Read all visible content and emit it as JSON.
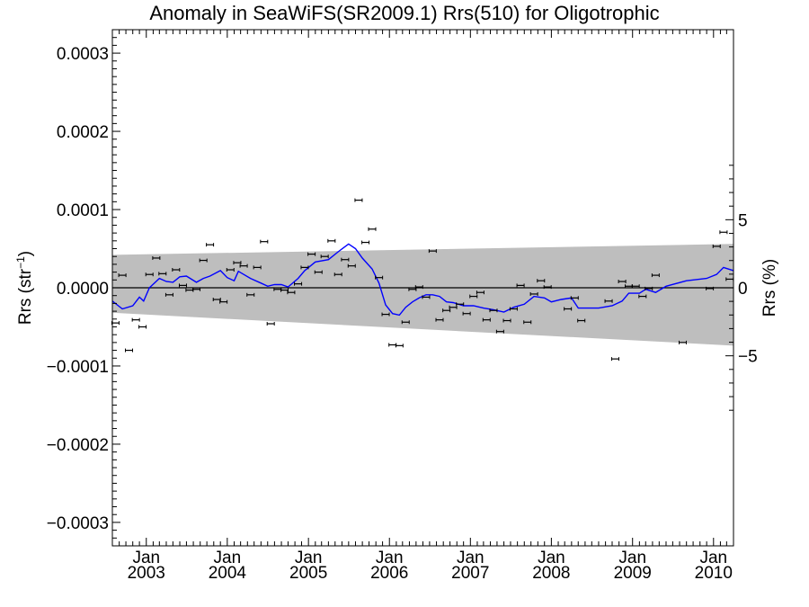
{
  "chart_data": {
    "type": "line",
    "title": "Anomaly in SeaWiFS(SR2009.1) Rrs(510) for Oligotrophic",
    "ylabel": "Rrs (str",
    "ylabel_superscript": "−1",
    "ylabel_close": ")",
    "y2label": "Rrs (%)",
    "xlim": [
      "2002-08-01",
      "2010-04-01"
    ],
    "ylim": [
      -0.00033,
      0.00033
    ],
    "y2_ticks": [
      {
        "value": 8.7e-05,
        "label": "5"
      },
      {
        "value": 0.0,
        "label": "0"
      },
      {
        "value": -8.7e-05,
        "label": "−5"
      }
    ],
    "y_ticks": [
      {
        "value": 0.0003,
        "label": "0.0003"
      },
      {
        "value": 0.0002,
        "label": "0.0002"
      },
      {
        "value": 0.0001,
        "label": "0.0001"
      },
      {
        "value": 0.0,
        "label": "0.0000"
      },
      {
        "value": -0.0001,
        "label": "−0.0001"
      },
      {
        "value": -0.0002,
        "label": "−0.0002"
      },
      {
        "value": -0.0003,
        "label": "−0.0003"
      }
    ],
    "x_ticks": [
      {
        "date": "2003-01-01",
        "month": "Jan",
        "year": "2003"
      },
      {
        "date": "2004-01-01",
        "month": "Jan",
        "year": "2004"
      },
      {
        "date": "2005-01-01",
        "month": "Jan",
        "year": "2005"
      },
      {
        "date": "2006-01-01",
        "month": "Jan",
        "year": "2006"
      },
      {
        "date": "2007-01-01",
        "month": "Jan",
        "year": "2007"
      },
      {
        "date": "2008-01-01",
        "month": "Jan",
        "year": "2008"
      },
      {
        "date": "2009-01-01",
        "month": "Jan",
        "year": "2009"
      },
      {
        "date": "2010-01-01",
        "month": "Jan",
        "year": "2010"
      }
    ],
    "uncertainty_band": {
      "color": "#bebebe",
      "x": [
        "2002-08-01",
        "2010-04-01"
      ],
      "upper": [
        4.2e-05,
        5.6e-05
      ],
      "lower": [
        -3.2e-05,
        -7.4e-05
      ]
    },
    "zero_line": true,
    "grid": false,
    "series": [
      {
        "kind": "points_with_errorbars",
        "color": "#000000",
        "points": [
          {
            "x": "2002-08-15",
            "y": -4.5e-05
          },
          {
            "x": "2002-09-15",
            "y": 1.6e-05
          },
          {
            "x": "2002-10-15",
            "y": -8e-05
          },
          {
            "x": "2002-11-15",
            "y": -4.1e-05
          },
          {
            "x": "2002-12-15",
            "y": -5e-05
          },
          {
            "x": "2003-01-15",
            "y": 1.7e-05
          },
          {
            "x": "2003-02-15",
            "y": 3.8e-05
          },
          {
            "x": "2003-03-15",
            "y": 1.8e-05
          },
          {
            "x": "2003-04-15",
            "y": -9e-06
          },
          {
            "x": "2003-05-15",
            "y": 2.3e-05
          },
          {
            "x": "2003-06-15",
            "y": 3e-06
          },
          {
            "x": "2003-07-15",
            "y": -3e-06
          },
          {
            "x": "2003-08-15",
            "y": -2e-06
          },
          {
            "x": "2003-09-15",
            "y": 3.5e-05
          },
          {
            "x": "2003-10-15",
            "y": 5.5e-05
          },
          {
            "x": "2003-11-15",
            "y": -1.5e-05
          },
          {
            "x": "2003-12-15",
            "y": -1.8e-05
          },
          {
            "x": "2004-01-15",
            "y": 2.3e-05
          },
          {
            "x": "2004-02-15",
            "y": 3.2e-05
          },
          {
            "x": "2004-03-15",
            "y": 2.8e-05
          },
          {
            "x": "2004-04-15",
            "y": -9e-06
          },
          {
            "x": "2004-05-15",
            "y": 2.6e-05
          },
          {
            "x": "2004-06-15",
            "y": 5.9e-05
          },
          {
            "x": "2004-07-15",
            "y": -4.6e-05
          },
          {
            "x": "2004-08-15",
            "y": -2e-06
          },
          {
            "x": "2004-09-15",
            "y": -3e-06
          },
          {
            "x": "2004-10-15",
            "y": -6e-06
          },
          {
            "x": "2004-11-15",
            "y": 5e-06
          },
          {
            "x": "2004-12-15",
            "y": 2.6e-05
          },
          {
            "x": "2005-01-15",
            "y": 4.3e-05
          },
          {
            "x": "2005-02-15",
            "y": 2e-05
          },
          {
            "x": "2005-03-15",
            "y": 4e-05
          },
          {
            "x": "2005-04-15",
            "y": 6e-05
          },
          {
            "x": "2005-05-15",
            "y": 1.7e-05
          },
          {
            "x": "2005-06-15",
            "y": 3.6e-05
          },
          {
            "x": "2005-07-15",
            "y": 2.8e-05
          },
          {
            "x": "2005-08-15",
            "y": 0.000112
          },
          {
            "x": "2005-09-15",
            "y": 5.8e-05
          },
          {
            "x": "2005-10-15",
            "y": 7.5e-05
          },
          {
            "x": "2005-11-15",
            "y": 1.3e-05
          },
          {
            "x": "2005-12-15",
            "y": -3.4e-05
          },
          {
            "x": "2006-01-15",
            "y": -7.3e-05
          },
          {
            "x": "2006-02-15",
            "y": -7.4e-05
          },
          {
            "x": "2006-03-15",
            "y": -4.4e-05
          },
          {
            "x": "2006-04-15",
            "y": -2e-06
          },
          {
            "x": "2006-05-15",
            "y": 1e-06
          },
          {
            "x": "2006-06-15",
            "y": -1.2e-05
          },
          {
            "x": "2006-07-15",
            "y": 4.7e-05
          },
          {
            "x": "2006-08-15",
            "y": -4.1e-05
          },
          {
            "x": "2006-09-15",
            "y": -2.9e-05
          },
          {
            "x": "2006-10-15",
            "y": -2.5e-05
          },
          {
            "x": "2006-11-15",
            "y": -2.1e-05
          },
          {
            "x": "2006-12-15",
            "y": -3.3e-05
          },
          {
            "x": "2007-01-15",
            "y": -1.1e-05
          },
          {
            "x": "2007-02-15",
            "y": -6e-06
          },
          {
            "x": "2007-03-15",
            "y": -4.1e-05
          },
          {
            "x": "2007-04-15",
            "y": -2.9e-05
          },
          {
            "x": "2007-05-15",
            "y": -5.6e-05
          },
          {
            "x": "2007-06-15",
            "y": -4.2e-05
          },
          {
            "x": "2007-07-15",
            "y": -2.7e-05
          },
          {
            "x": "2007-08-15",
            "y": 3e-06
          },
          {
            "x": "2007-09-15",
            "y": -4.4e-05
          },
          {
            "x": "2007-10-15",
            "y": -8e-06
          },
          {
            "x": "2007-11-15",
            "y": 9e-06
          },
          {
            "x": "2007-12-15",
            "y": 1e-06
          },
          {
            "x": "2008-03-15",
            "y": -2.7e-05
          },
          {
            "x": "2008-04-15",
            "y": -1.3e-05
          },
          {
            "x": "2008-05-15",
            "y": -4.2e-05
          },
          {
            "x": "2008-09-15",
            "y": -1.7e-05
          },
          {
            "x": "2008-10-15",
            "y": -9.1e-05
          },
          {
            "x": "2008-11-15",
            "y": 8e-06
          },
          {
            "x": "2008-12-15",
            "y": 2e-06
          },
          {
            "x": "2009-01-15",
            "y": 2e-06
          },
          {
            "x": "2009-02-15",
            "y": -1.1e-05
          },
          {
            "x": "2009-03-15",
            "y": -1e-06
          },
          {
            "x": "2009-04-15",
            "y": 1.6e-05
          },
          {
            "x": "2009-08-15",
            "y": -7e-05
          },
          {
            "x": "2009-12-15",
            "y": -1e-06
          },
          {
            "x": "2010-01-15",
            "y": 5.3e-05
          },
          {
            "x": "2010-02-15",
            "y": 7.1e-05
          },
          {
            "x": "2010-03-15",
            "y": 1.1e-05
          }
        ]
      },
      {
        "kind": "line",
        "color": "#0000ff",
        "points": [
          {
            "x": "2002-08-01",
            "y": -1.7e-05
          },
          {
            "x": "2002-09-15",
            "y": -2.7e-05
          },
          {
            "x": "2002-11-01",
            "y": -2.3e-05
          },
          {
            "x": "2002-12-01",
            "y": -1.2e-05
          },
          {
            "x": "2002-12-20",
            "y": -1.7e-05
          },
          {
            "x": "2003-01-15",
            "y": 0.0
          },
          {
            "x": "2003-03-01",
            "y": 1.2e-05
          },
          {
            "x": "2003-04-01",
            "y": 8e-06
          },
          {
            "x": "2003-05-01",
            "y": 7e-06
          },
          {
            "x": "2003-06-01",
            "y": 1.4e-05
          },
          {
            "x": "2003-07-01",
            "y": 1.5e-05
          },
          {
            "x": "2003-08-15",
            "y": 7e-06
          },
          {
            "x": "2003-09-15",
            "y": 1.2e-05
          },
          {
            "x": "2003-10-15",
            "y": 1.5e-05
          },
          {
            "x": "2003-12-01",
            "y": 2.2e-05
          },
          {
            "x": "2004-01-01",
            "y": 1.3e-05
          },
          {
            "x": "2004-02-01",
            "y": 9e-06
          },
          {
            "x": "2004-02-20",
            "y": 2.1e-05
          },
          {
            "x": "2004-04-15",
            "y": 1.2e-05
          },
          {
            "x": "2004-06-01",
            "y": 6e-06
          },
          {
            "x": "2004-07-01",
            "y": 2e-06
          },
          {
            "x": "2004-08-01",
            "y": 4e-06
          },
          {
            "x": "2004-09-01",
            "y": 4e-06
          },
          {
            "x": "2004-10-01",
            "y": 1e-06
          },
          {
            "x": "2004-11-15",
            "y": 1.2e-05
          },
          {
            "x": "2004-12-15",
            "y": 2.2e-05
          },
          {
            "x": "2005-02-01",
            "y": 3.3e-05
          },
          {
            "x": "2005-04-01",
            "y": 3.6e-05
          },
          {
            "x": "2005-05-15",
            "y": 4.6e-05
          },
          {
            "x": "2005-07-01",
            "y": 5.6e-05
          },
          {
            "x": "2005-08-01",
            "y": 5e-05
          },
          {
            "x": "2005-09-01",
            "y": 3.8e-05
          },
          {
            "x": "2005-10-15",
            "y": 2.4e-05
          },
          {
            "x": "2005-11-15",
            "y": 6e-06
          },
          {
            "x": "2005-12-15",
            "y": -2.2e-05
          },
          {
            "x": "2006-01-15",
            "y": -3.3e-05
          },
          {
            "x": "2006-02-15",
            "y": -3.5e-05
          },
          {
            "x": "2006-03-15",
            "y": -2.5e-05
          },
          {
            "x": "2006-04-15",
            "y": -1.8e-05
          },
          {
            "x": "2006-05-15",
            "y": -1.3e-05
          },
          {
            "x": "2006-06-15",
            "y": -9e-06
          },
          {
            "x": "2006-07-15",
            "y": -9e-06
          },
          {
            "x": "2006-08-15",
            "y": -1.1e-05
          },
          {
            "x": "2006-09-15",
            "y": -1.8e-05
          },
          {
            "x": "2006-10-15",
            "y": -1.9e-05
          },
          {
            "x": "2006-12-01",
            "y": -2.3e-05
          },
          {
            "x": "2007-01-15",
            "y": -2.3e-05
          },
          {
            "x": "2007-03-01",
            "y": -2.6e-05
          },
          {
            "x": "2007-04-15",
            "y": -2.8e-05
          },
          {
            "x": "2007-06-01",
            "y": -3.1e-05
          },
          {
            "x": "2007-07-15",
            "y": -2.5e-05
          },
          {
            "x": "2007-09-01",
            "y": -2.1e-05
          },
          {
            "x": "2007-10-15",
            "y": -1.1e-05
          },
          {
            "x": "2007-12-01",
            "y": -1.3e-05
          },
          {
            "x": "2008-01-01",
            "y": -1.8e-05
          },
          {
            "x": "2008-02-15",
            "y": -1.5e-05
          },
          {
            "x": "2008-04-01",
            "y": -1.3e-05
          },
          {
            "x": "2008-05-01",
            "y": -2.6e-05
          },
          {
            "x": "2008-06-15",
            "y": -2.6e-05
          },
          {
            "x": "2008-08-01",
            "y": -2.6e-05
          },
          {
            "x": "2008-10-01",
            "y": -2.3e-05
          },
          {
            "x": "2008-11-15",
            "y": -1.7e-05
          },
          {
            "x": "2008-12-15",
            "y": -7e-06
          },
          {
            "x": "2009-02-01",
            "y": -7e-06
          },
          {
            "x": "2009-03-01",
            "y": -2e-06
          },
          {
            "x": "2009-04-15",
            "y": -6e-06
          },
          {
            "x": "2009-06-01",
            "y": 2e-06
          },
          {
            "x": "2009-09-01",
            "y": 9e-06
          },
          {
            "x": "2009-12-01",
            "y": 1.2e-05
          },
          {
            "x": "2010-01-15",
            "y": 1.7e-05
          },
          {
            "x": "2010-02-15",
            "y": 2.6e-05
          },
          {
            "x": "2010-04-01",
            "y": 2.2e-05
          }
        ]
      }
    ]
  }
}
